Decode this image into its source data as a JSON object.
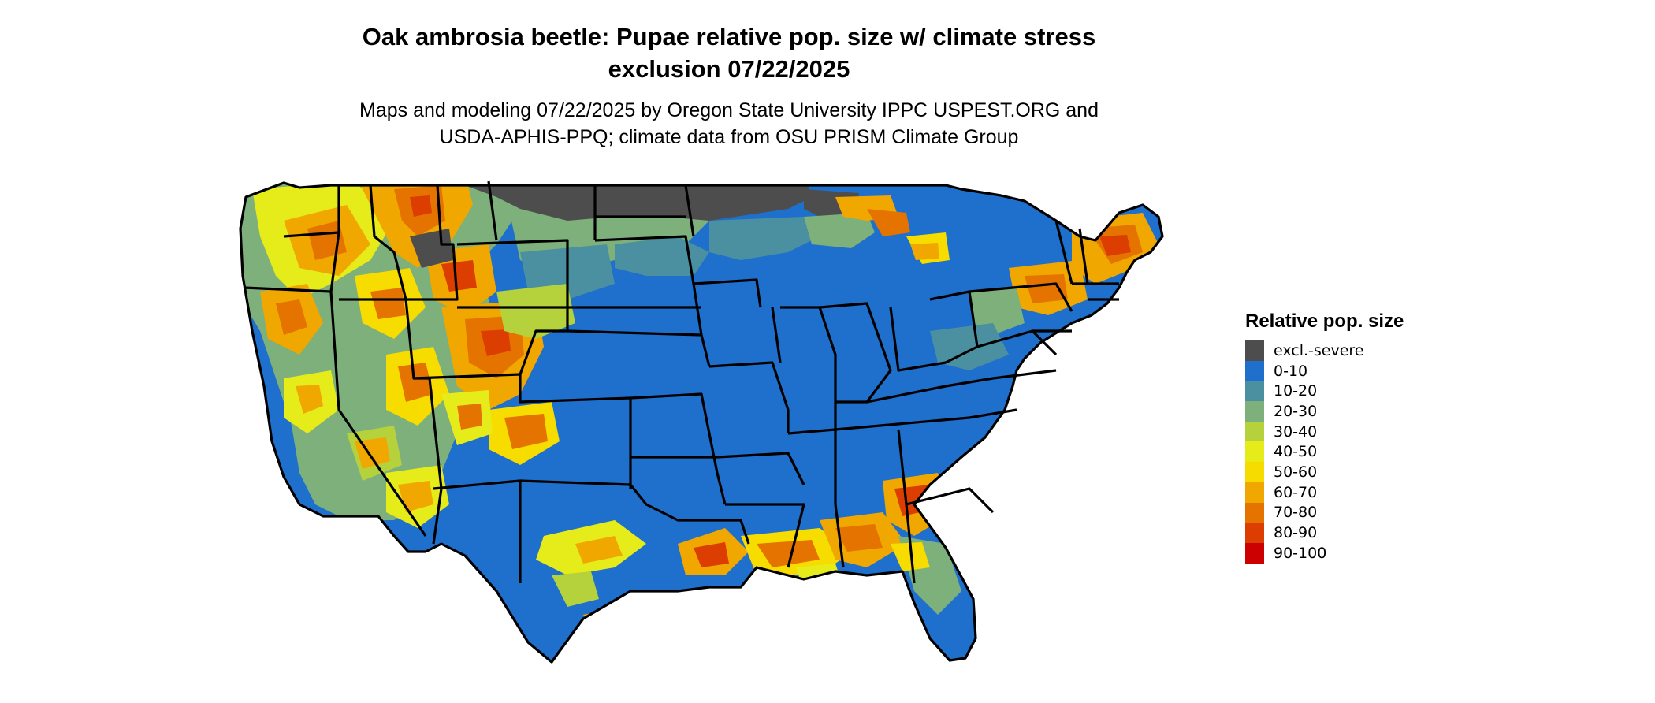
{
  "title": {
    "line1": "Oak ambrosia beetle: Pupae relative pop. size w/ climate stress",
    "line2": "exclusion 07/22/2025"
  },
  "subtitle": {
    "line1": "Maps and modeling 07/22/2025 by Oregon State University IPPC USPEST.ORG and",
    "line2": "USDA-APHIS-PPQ; climate data from OSU PRISM Climate Group"
  },
  "legend": {
    "title": "Relative pop. size",
    "items": [
      {
        "label": "excl.-severe",
        "color": "#4d4d4d"
      },
      {
        "label": "0-10",
        "color": "#1f6fcc"
      },
      {
        "label": "10-20",
        "color": "#4a90a0"
      },
      {
        "label": "20-30",
        "color": "#7db07a"
      },
      {
        "label": "30-40",
        "color": "#b5d13c"
      },
      {
        "label": "40-50",
        "color": "#e6ec1a"
      },
      {
        "label": "50-60",
        "color": "#f7dc00"
      },
      {
        "label": "60-70",
        "color": "#f0a800"
      },
      {
        "label": "70-80",
        "color": "#e57300"
      },
      {
        "label": "80-90",
        "color": "#dc3d00"
      },
      {
        "label": "90-100",
        "color": "#cc0000"
      }
    ]
  }
}
